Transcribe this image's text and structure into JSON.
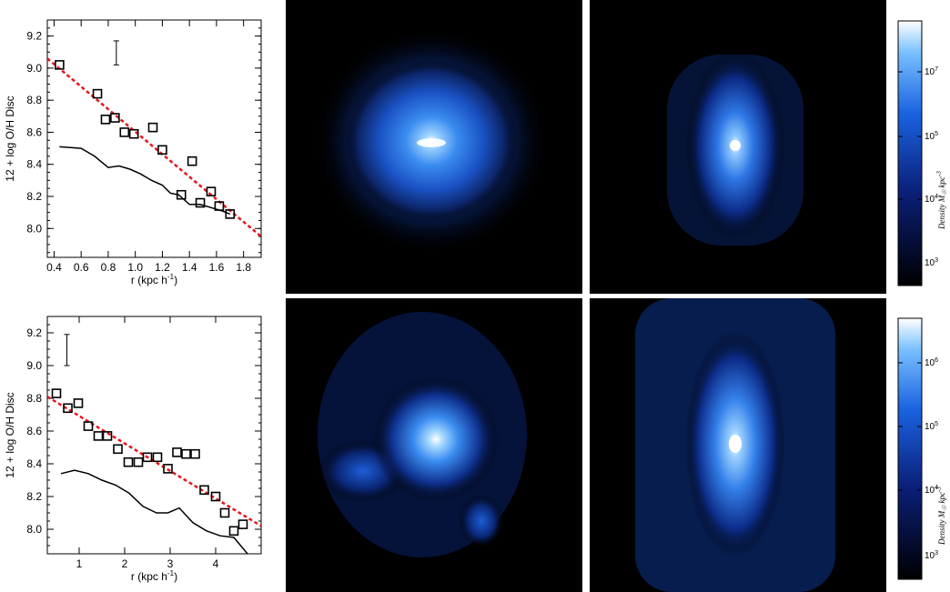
{
  "chart_data": [
    {
      "type": "scatter",
      "xlabel": "r (kpc h",
      "xlabel_sup": "-1",
      "xlabel_close": ")",
      "ylabel": "12 + log O/H Disc",
      "xlim": [
        0.35,
        1.93
      ],
      "ylim": [
        7.82,
        9.3
      ],
      "xticks": [
        "0.4",
        "0.6",
        "0.8",
        "1.0",
        "1.2",
        "1.4",
        "1.6",
        "1.8"
      ],
      "xtick_values": [
        0.4,
        0.6,
        0.8,
        1.0,
        1.2,
        1.4,
        1.6,
        1.8
      ],
      "yticks": [
        "8.0",
        "8.2",
        "8.4",
        "8.6",
        "8.8",
        "9.0",
        "9.2"
      ],
      "ytick_values": [
        8.0,
        8.2,
        8.4,
        8.6,
        8.8,
        9.0,
        9.2
      ],
      "points": [
        {
          "x": 0.44,
          "y": 9.02
        },
        {
          "x": 0.72,
          "y": 8.84
        },
        {
          "x": 0.78,
          "y": 8.68
        },
        {
          "x": 0.85,
          "y": 8.69
        },
        {
          "x": 0.92,
          "y": 8.6
        },
        {
          "x": 0.99,
          "y": 8.59
        },
        {
          "x": 1.13,
          "y": 8.63
        },
        {
          "x": 1.2,
          "y": 8.49
        },
        {
          "x": 1.34,
          "y": 8.21
        },
        {
          "x": 1.42,
          "y": 8.42
        },
        {
          "x": 1.48,
          "y": 8.16
        },
        {
          "x": 1.56,
          "y": 8.23
        },
        {
          "x": 1.62,
          "y": 8.14
        },
        {
          "x": 1.7,
          "y": 8.09
        }
      ],
      "fit_line": {
        "x": [
          0.35,
          1.93
        ],
        "y": [
          9.06,
          7.95
        ]
      },
      "model_line": {
        "x": [
          0.44,
          0.6,
          0.7,
          0.8,
          0.88,
          0.96,
          1.04,
          1.12,
          1.2,
          1.26,
          1.32,
          1.4,
          1.48,
          1.56,
          1.64,
          1.7
        ],
        "y": [
          8.51,
          8.5,
          8.45,
          8.38,
          8.39,
          8.37,
          8.34,
          8.3,
          8.27,
          8.22,
          8.21,
          8.15,
          8.15,
          8.13,
          8.11,
          8.09
        ]
      },
      "error_bar": {
        "x": 0.86,
        "y_low": 9.02,
        "y_high": 9.17
      }
    },
    {
      "type": "scatter",
      "xlabel": "r (kpc h",
      "xlabel_sup": "-1",
      "xlabel_close": ")",
      "ylabel": "12 + log O/H Disc",
      "xlim": [
        0.3,
        5.0
      ],
      "ylim": [
        7.85,
        9.3
      ],
      "xticks": [
        "1",
        "2",
        "3",
        "4"
      ],
      "xtick_values": [
        1,
        2,
        3,
        4
      ],
      "yticks": [
        "8.0",
        "8.2",
        "8.4",
        "8.6",
        "8.8",
        "9.0",
        "9.2"
      ],
      "yticks_drawn": [
        8.0,
        8.2,
        8.4,
        8.6,
        8.8,
        9.0,
        9.2
      ],
      "points": [
        {
          "x": 0.5,
          "y": 8.83
        },
        {
          "x": 0.75,
          "y": 8.74
        },
        {
          "x": 0.98,
          "y": 8.77
        },
        {
          "x": 1.2,
          "y": 8.63
        },
        {
          "x": 1.42,
          "y": 8.57
        },
        {
          "x": 1.62,
          "y": 8.57
        },
        {
          "x": 1.85,
          "y": 8.49
        },
        {
          "x": 2.08,
          "y": 8.41
        },
        {
          "x": 2.3,
          "y": 8.41
        },
        {
          "x": 2.5,
          "y": 8.44
        },
        {
          "x": 2.72,
          "y": 8.44
        },
        {
          "x": 2.95,
          "y": 8.37
        },
        {
          "x": 3.15,
          "y": 8.47
        },
        {
          "x": 3.35,
          "y": 8.46
        },
        {
          "x": 3.55,
          "y": 8.46
        },
        {
          "x": 3.75,
          "y": 8.24
        },
        {
          "x": 4.0,
          "y": 8.2
        },
        {
          "x": 4.2,
          "y": 8.1
        },
        {
          "x": 4.4,
          "y": 7.99
        },
        {
          "x": 4.6,
          "y": 8.03
        }
      ],
      "fit_line": {
        "x": [
          0.3,
          5.0
        ],
        "y": [
          8.81,
          8.02
        ]
      },
      "model_line": {
        "x": [
          0.6,
          0.9,
          1.2,
          1.5,
          1.8,
          2.1,
          2.4,
          2.7,
          2.95,
          3.2,
          3.5,
          3.8,
          4.1,
          4.4,
          4.7
        ],
        "y": [
          8.34,
          8.36,
          8.34,
          8.3,
          8.27,
          8.22,
          8.14,
          8.1,
          8.1,
          8.13,
          8.04,
          7.99,
          7.96,
          7.95,
          7.85
        ]
      },
      "error_bar": {
        "x": 0.73,
        "y_low": 9.0,
        "y_high": 9.19
      }
    }
  ],
  "colorbars": [
    {
      "label": "Density M",
      "label_sub": "☉",
      "label_unit": "kpc",
      "label_sup": "-3",
      "ticks": [
        "10",
        "10",
        "10",
        "10"
      ],
      "tick_exps": [
        "7",
        "5",
        "4",
        "3"
      ]
    },
    {
      "label": "Density M",
      "label_sub": "☉",
      "label_unit": "kpc",
      "label_sup": "-3",
      "ticks": [
        "10",
        "10",
        "10",
        "10"
      ],
      "tick_exps": [
        "6",
        "5",
        "4",
        "3"
      ]
    }
  ],
  "colors": {
    "fit": "#e8141c",
    "model": "#000000",
    "marker": "#000000",
    "cmap_low": "#000000",
    "cmap_mid": "#0a3cd6",
    "cmap_high": "#ffffff"
  }
}
